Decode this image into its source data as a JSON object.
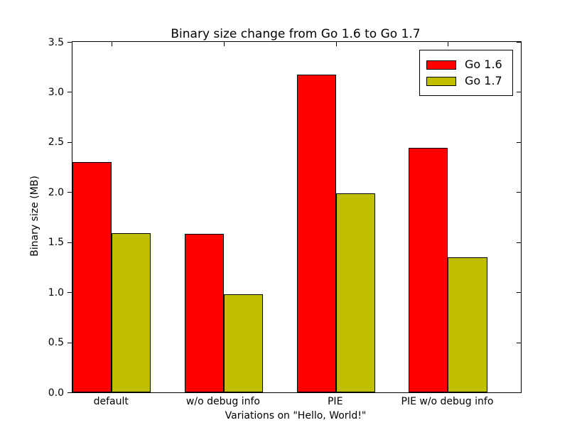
{
  "chart_data": {
    "type": "bar",
    "title": "Binary size change from Go 1.6 to Go 1.7",
    "xlabel": "Variations on \"Hello, World!\"",
    "ylabel": "Binary size (MB)",
    "categories": [
      "default",
      "w/o debug info",
      "PIE",
      "PIE w/o debug info"
    ],
    "series": [
      {
        "name": "Go 1.6",
        "color": "#ff0000",
        "values": [
          2.3,
          1.58,
          3.17,
          2.44
        ]
      },
      {
        "name": "Go 1.7",
        "color": "#bfbf00",
        "values": [
          1.59,
          0.98,
          1.99,
          1.35
        ]
      }
    ],
    "ylim": [
      0,
      3.5
    ],
    "yticks": [
      0.0,
      0.5,
      1.0,
      1.5,
      2.0,
      2.5,
      3.0,
      3.5
    ],
    "ytick_format_decimals": 1,
    "bar_width_frac": 0.35,
    "grid": false,
    "legend_position": "upper right",
    "background_color": "#ffffff",
    "axis_color": "#000000"
  }
}
